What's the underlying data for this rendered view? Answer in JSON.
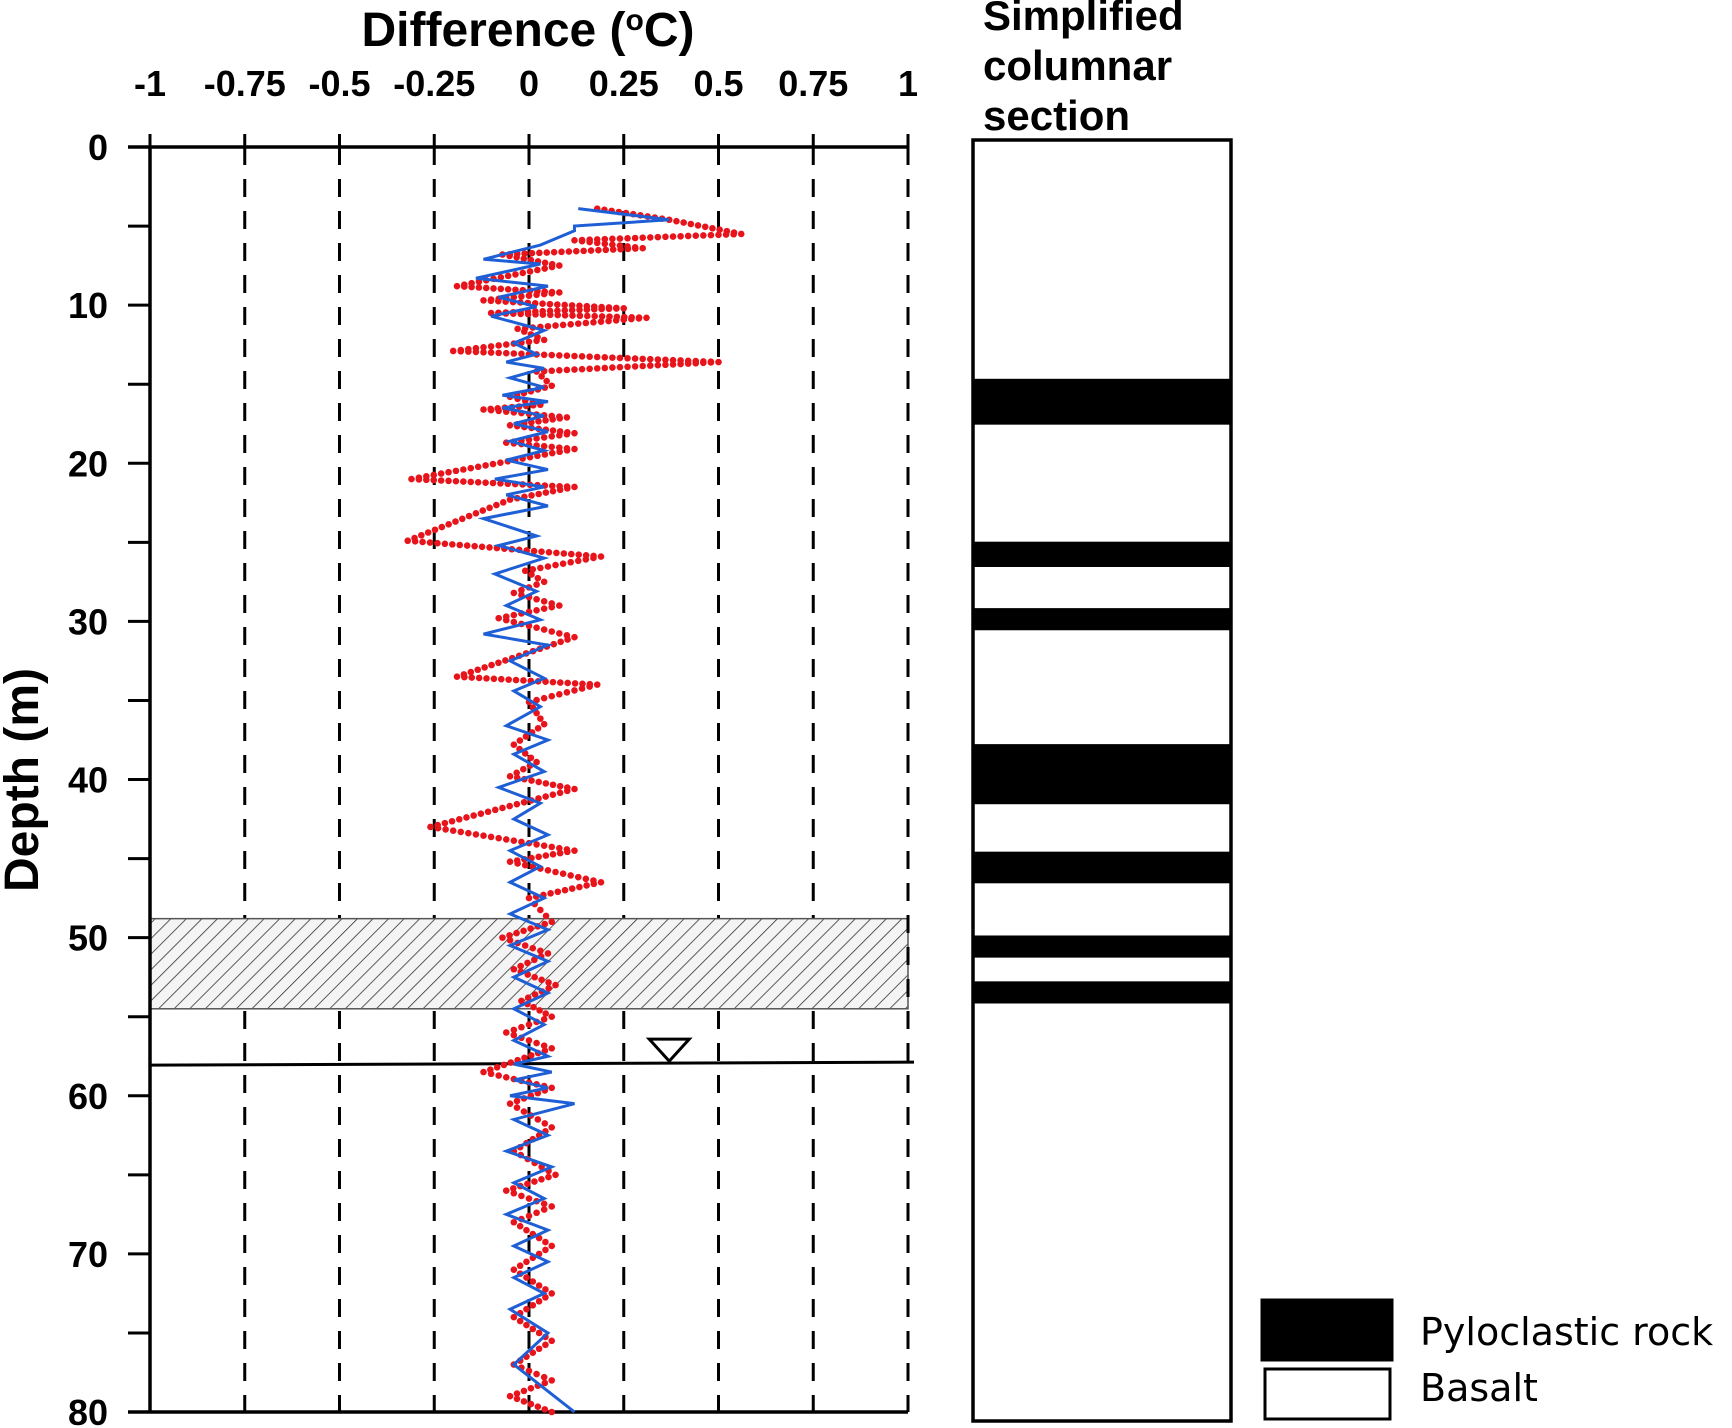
{
  "chart_data": [
    {
      "type": "line",
      "title": "Difference (°C)",
      "xlabel_main": "Difference (",
      "xlabel_sup": "o",
      "xlabel_tail": "C)",
      "ylabel": "Depth (m)",
      "x_axis_position": "top",
      "y_axis_inverted": true,
      "xlim": [
        -1,
        1
      ],
      "ylim": [
        0,
        80
      ],
      "x_ticks": [
        -1,
        -0.75,
        -0.5,
        -0.25,
        0,
        0.25,
        0.5,
        0.75,
        1
      ],
      "x_tick_labels": [
        "-1",
        "-0.75",
        "-0.5",
        "-0.25",
        "0",
        "0.25",
        "0.5",
        "0.75",
        "1"
      ],
      "y_ticks": [
        0,
        10,
        20,
        30,
        40,
        50,
        60,
        70,
        80
      ],
      "y_tick_labels": [
        "0",
        "10",
        "20",
        "30",
        "40",
        "50",
        "60",
        "70",
        "80"
      ],
      "y_minor_ticks": [
        5,
        15,
        25,
        35,
        45,
        55,
        65,
        75
      ],
      "grid": "vertical dashed lines at each x tick",
      "hatched_zone": {
        "depth_top": 48.8,
        "depth_bottom": 54.5
      },
      "water_table": {
        "depth": 58.0,
        "marker_x": 0.37
      },
      "series": [
        {
          "style": "red dotted line",
          "color": "#e8141c",
          "x": [
            0.18,
            0.37,
            0.56,
            0.12,
            0.3,
            -0.07,
            0.08,
            -0.19,
            0.08,
            -0.12,
            0.25,
            -0.1,
            0.31,
            -0.03,
            0.04,
            -0.2,
            0.5,
            0.02,
            0.06,
            -0.05,
            0.03,
            -0.12,
            0.1,
            -0.05,
            0.12,
            -0.06,
            0.12,
            -0.31,
            0.12,
            -0.05,
            -0.32,
            0.19,
            -0.01,
            0.04,
            -0.04,
            0.08,
            -0.08,
            0.12,
            -0.19,
            0.18,
            0.0,
            0.04,
            -0.04,
            0.02,
            -0.05,
            0.12,
            -0.26,
            0.12,
            -0.05,
            0.19,
            0.0,
            0.06,
            -0.07,
            0.05,
            -0.04,
            0.07,
            -0.02,
            0.06,
            -0.06,
            0.06,
            -0.12,
            0.06,
            -0.05,
            0.06,
            -0.04,
            0.07,
            -0.06,
            0.06,
            -0.04,
            0.06,
            -0.04,
            0.06,
            -0.04,
            0.06,
            -0.04,
            0.06,
            -0.05,
            0.06
          ],
          "y": [
            3.9,
            4.6,
            5.5,
            5.9,
            6.4,
            6.8,
            7.5,
            8.8,
            9.2,
            9.7,
            10.2,
            10.5,
            10.8,
            11.5,
            12.2,
            12.9,
            13.6,
            14.2,
            15.1,
            15.8,
            16.3,
            16.6,
            17.1,
            17.6,
            18.1,
            18.7,
            19.1,
            21.0,
            21.5,
            22.3,
            24.9,
            25.9,
            26.8,
            27.5,
            28.2,
            29.0,
            29.8,
            31.0,
            33.5,
            34.0,
            35.1,
            36.5,
            37.8,
            38.9,
            39.8,
            40.6,
            43.0,
            44.5,
            45.2,
            46.5,
            47.5,
            49.0,
            50.0,
            51.0,
            52.0,
            53.0,
            54.0,
            55.0,
            56.0,
            57.0,
            58.5,
            59.5,
            60.5,
            62.0,
            63.5,
            65.0,
            66.0,
            67.0,
            68.0,
            69.5,
            71.0,
            72.5,
            74.0,
            75.5,
            77.0,
            78.0,
            79.0,
            80.0
          ]
        },
        {
          "style": "blue solid line",
          "color": "#1e5fd6",
          "x": [
            0.13,
            0.37,
            0.12,
            0.12,
            0.03,
            -0.12,
            0.03,
            -0.14,
            0.05,
            -0.08,
            0.02,
            -0.1,
            0.04,
            -0.04,
            0.02,
            -0.06,
            0.04,
            -0.05,
            0.04,
            -0.07,
            0.05,
            -0.07,
            0.04,
            -0.04,
            0.05,
            -0.05,
            0.04,
            -0.06,
            0.05,
            -0.09,
            0.04,
            -0.06,
            0.05,
            -0.12,
            0.02,
            -0.08,
            0.04,
            -0.09,
            0.02,
            -0.06,
            0.03,
            -0.12,
            0.05,
            -0.05,
            0.04,
            -0.04,
            0.03,
            -0.06,
            0.05,
            -0.04,
            0.04,
            -0.08,
            0.03,
            -0.04,
            0.05,
            -0.05,
            0.03,
            -0.05,
            0.04,
            -0.05,
            0.05,
            -0.05,
            0.05,
            -0.04,
            0.05,
            -0.04,
            0.04,
            -0.04,
            0.05,
            -0.04,
            0.06,
            -0.04,
            0.05,
            -0.05,
            0.12,
            -0.04,
            0.05,
            -0.06,
            0.06,
            -0.04,
            0.04,
            -0.06,
            0.05,
            -0.04,
            0.05,
            -0.04,
            0.04,
            -0.05,
            0.05,
            -0.04,
            0.12
          ],
          "y": [
            3.9,
            4.6,
            5.0,
            5.3,
            6.2,
            7.1,
            7.4,
            8.3,
            8.8,
            9.5,
            10.1,
            10.7,
            11.6,
            12.4,
            13.1,
            13.6,
            14.0,
            14.6,
            15.2,
            15.7,
            16.1,
            16.5,
            17.0,
            17.5,
            18.0,
            18.6,
            19.2,
            19.8,
            20.4,
            21.0,
            21.5,
            22.0,
            22.7,
            23.5,
            24.6,
            25.2,
            26.0,
            27.0,
            28.1,
            29.0,
            29.9,
            30.8,
            31.5,
            32.5,
            33.6,
            34.4,
            35.4,
            36.6,
            37.5,
            38.4,
            39.5,
            40.5,
            41.5,
            42.5,
            43.5,
            44.5,
            45.5,
            46.5,
            47.5,
            48.5,
            49.5,
            50.5,
            51.5,
            52.5,
            53.5,
            54.5,
            55.5,
            56.5,
            57.5,
            58.0,
            58.5,
            59.0,
            59.5,
            60.0,
            60.5,
            61.5,
            62.5,
            63.5,
            64.5,
            65.5,
            66.5,
            67.5,
            68.5,
            69.5,
            70.5,
            71.5,
            72.5,
            73.5,
            75.0,
            77.0,
            80.0
          ]
        }
      ]
    },
    {
      "type": "column",
      "title_lines": [
        "Simplified",
        "columnar",
        "section"
      ],
      "depth_range": [
        0,
        81
      ],
      "pyroclastic_layers": [
        {
          "top": 15.1,
          "bottom": 18.0
        },
        {
          "top": 25.4,
          "bottom": 27.0
        },
        {
          "top": 29.6,
          "bottom": 31.0
        },
        {
          "top": 38.2,
          "bottom": 42.0
        },
        {
          "top": 45.0,
          "bottom": 47.0
        },
        {
          "top": 50.3,
          "bottom": 51.7
        },
        {
          "top": 53.2,
          "bottom": 54.6
        }
      ],
      "legend": [
        {
          "label": "Pyloclastic rock",
          "fill": "#000000"
        },
        {
          "label": "Basalt",
          "fill": "#ffffff"
        }
      ]
    }
  ]
}
